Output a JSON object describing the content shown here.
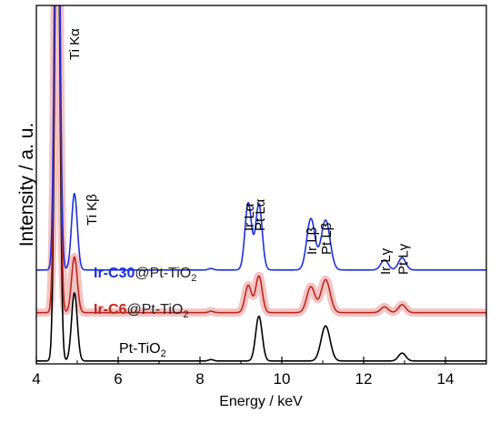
{
  "chart_data": {
    "type": "line",
    "xlabel": "Energy / keV",
    "ylabel": "Intensity / a. u.",
    "xlim": [
      4,
      15
    ],
    "ylim": [
      0,
      100
    ],
    "x_ticks": [
      "4",
      "6",
      "8",
      "10",
      "12",
      "14"
    ],
    "x_tick_values": [
      4,
      6,
      8,
      10,
      12,
      14
    ],
    "grid": false,
    "y_ticks_shown": false,
    "peak_labels": [
      {
        "text": "Ti Kα",
        "energy": 4.51
      },
      {
        "text": "Ti Kβ",
        "energy": 4.93
      },
      {
        "text": "Ir Lα",
        "energy": 9.18
      },
      {
        "text": "Pt Lα",
        "energy": 9.44
      },
      {
        "text": "Ir Lβ",
        "energy": 10.71
      },
      {
        "text": "Pt Lβ",
        "energy": 11.07
      },
      {
        "text": "Ir Lγ",
        "energy": 12.51
      },
      {
        "text": "Pt Lγ",
        "energy": 12.94
      }
    ],
    "series": [
      {
        "name": "Pt-TiO2",
        "label": {
          "prefix": "",
          "bold": "",
          "rest": "Pt-TiO",
          "sub": "2"
        },
        "color": "#000000",
        "baseline": 0.8,
        "peaks": [
          {
            "energy": 4.51,
            "height": 150,
            "width": 0.06
          },
          {
            "energy": 4.93,
            "height": 19,
            "width": 0.07
          },
          {
            "energy": 8.27,
            "height": 0.4,
            "width": 0.06
          },
          {
            "energy": 9.44,
            "height": 12.5,
            "width": 0.08
          },
          {
            "energy": 11.07,
            "height": 9.8,
            "width": 0.11
          },
          {
            "energy": 12.94,
            "height": 2.2,
            "width": 0.09
          }
        ]
      },
      {
        "name": "Ir-C6@Pt-TiO2",
        "label": {
          "prefix": "",
          "bold": "Ir-C6",
          "rest": "@Pt-TiO",
          "sub": "2"
        },
        "color": "#c0261e",
        "baseline": 14.3,
        "band": "#f2c4c4",
        "peaks": [
          {
            "energy": 4.51,
            "height": 150,
            "width": 0.06
          },
          {
            "energy": 4.93,
            "height": 15.5,
            "width": 0.07
          },
          {
            "energy": 8.27,
            "height": 0.4,
            "width": 0.06
          },
          {
            "energy": 9.18,
            "height": 7.6,
            "width": 0.08
          },
          {
            "energy": 9.44,
            "height": 10.2,
            "width": 0.08
          },
          {
            "energy": 10.71,
            "height": 7.2,
            "width": 0.1
          },
          {
            "energy": 11.07,
            "height": 9.2,
            "width": 0.11
          },
          {
            "energy": 12.51,
            "height": 1.6,
            "width": 0.09
          },
          {
            "energy": 12.94,
            "height": 2.2,
            "width": 0.09
          }
        ]
      },
      {
        "name": "Ir-C30@Pt-TiO2",
        "label": {
          "prefix": "",
          "bold": "Ir-C30",
          "rest": "@Pt-TiO",
          "sub": "2"
        },
        "color": "#1f2fe0",
        "baseline": 26.2,
        "peaks": [
          {
            "energy": 4.51,
            "height": 150,
            "width": 0.06
          },
          {
            "energy": 4.93,
            "height": 21.3,
            "width": 0.07
          },
          {
            "energy": 8.27,
            "height": 0.4,
            "width": 0.06
          },
          {
            "energy": 9.18,
            "height": 18.7,
            "width": 0.08
          },
          {
            "energy": 9.44,
            "height": 18.4,
            "width": 0.08
          },
          {
            "energy": 10.71,
            "height": 14.3,
            "width": 0.1
          },
          {
            "energy": 11.07,
            "height": 13.9,
            "width": 0.11
          },
          {
            "energy": 12.51,
            "height": 2.8,
            "width": 0.09
          },
          {
            "energy": 12.94,
            "height": 3.4,
            "width": 0.09
          }
        ]
      }
    ]
  }
}
